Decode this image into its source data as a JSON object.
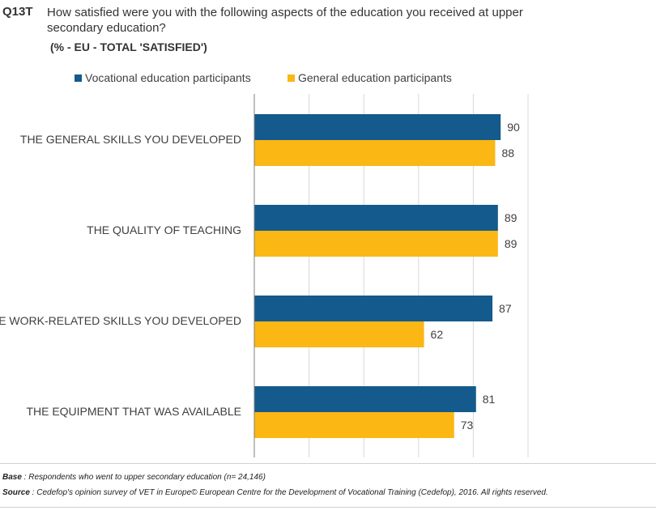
{
  "question": {
    "code": "Q13T",
    "text": "How satisfied were you with the following aspects of the education you received at upper secondary education?",
    "subtitle": "(% - EU - TOTAL 'SATISFIED')"
  },
  "colors": {
    "vocational": "#145a8c",
    "general": "#fbb713",
    "gridline": "#d9d9d9",
    "axis": "#7f7f7f",
    "text": "#404040"
  },
  "chart_data": {
    "type": "bar",
    "orientation": "horizontal",
    "categories": [
      "THE GENERAL SKILLS YOU DEVELOPED",
      "THE QUALITY OF TEACHING",
      "THE WORK-RELATED SKILLS YOU DEVELOPED",
      "THE EQUIPMENT THAT WAS AVAILABLE"
    ],
    "series": [
      {
        "name": "Vocational education participants",
        "values": [
          90,
          89,
          87,
          81
        ],
        "color": "#145a8c"
      },
      {
        "name": "General education participants",
        "values": [
          88,
          89,
          62,
          73
        ],
        "color": "#fbb713"
      }
    ],
    "xlim": [
      0,
      100
    ],
    "grid": true,
    "legend_position": "top",
    "data_labels": true
  },
  "footer": {
    "base_label": "Base",
    "base_text": " : Respondents who went to upper secondary education (n= 24,146)",
    "source_label": "Source",
    "source_text": " : Cedefop's opinion survey of VET in Europe© European Centre for the Development of Vocational Training (Cedefop), 2016. All rights reserved."
  }
}
